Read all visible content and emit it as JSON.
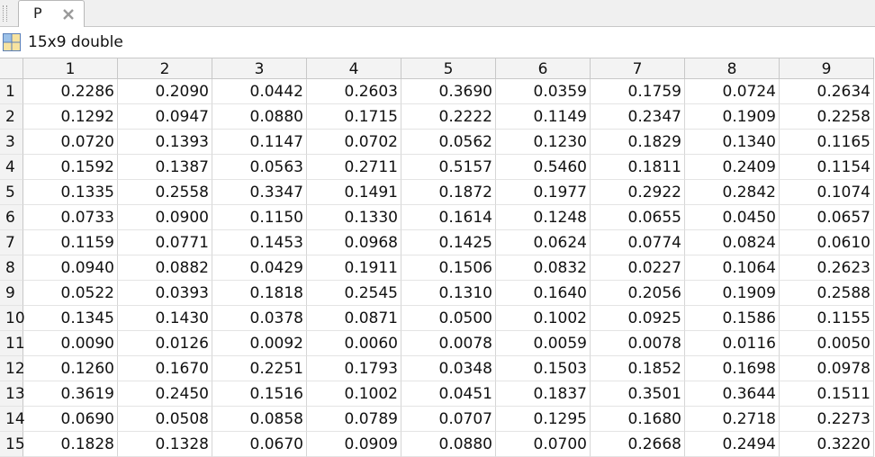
{
  "tab": {
    "label": "P"
  },
  "info": {
    "label": "15x9 double"
  },
  "table": {
    "column_headers": [
      "1",
      "2",
      "3",
      "4",
      "5",
      "6",
      "7",
      "8",
      "9"
    ],
    "row_headers": [
      "1",
      "2",
      "3",
      "4",
      "5",
      "6",
      "7",
      "8",
      "9",
      "10",
      "11",
      "12",
      "13",
      "14",
      "15"
    ],
    "rows": [
      [
        "0.2286",
        "0.2090",
        "0.0442",
        "0.2603",
        "0.3690",
        "0.0359",
        "0.1759",
        "0.0724",
        "0.2634"
      ],
      [
        "0.1292",
        "0.0947",
        "0.0880",
        "0.1715",
        "0.2222",
        "0.1149",
        "0.2347",
        "0.1909",
        "0.2258"
      ],
      [
        "0.0720",
        "0.1393",
        "0.1147",
        "0.0702",
        "0.0562",
        "0.1230",
        "0.1829",
        "0.1340",
        "0.1165"
      ],
      [
        "0.1592",
        "0.1387",
        "0.0563",
        "0.2711",
        "0.5157",
        "0.5460",
        "0.1811",
        "0.2409",
        "0.1154"
      ],
      [
        "0.1335",
        "0.2558",
        "0.3347",
        "0.1491",
        "0.1872",
        "0.1977",
        "0.2922",
        "0.2842",
        "0.1074"
      ],
      [
        "0.0733",
        "0.0900",
        "0.1150",
        "0.1330",
        "0.1614",
        "0.1248",
        "0.0655",
        "0.0450",
        "0.0657"
      ],
      [
        "0.1159",
        "0.0771",
        "0.1453",
        "0.0968",
        "0.1425",
        "0.0624",
        "0.0774",
        "0.0824",
        "0.0610"
      ],
      [
        "0.0940",
        "0.0882",
        "0.0429",
        "0.1911",
        "0.1506",
        "0.0832",
        "0.0227",
        "0.1064",
        "0.2623"
      ],
      [
        "0.0522",
        "0.0393",
        "0.1818",
        "0.2545",
        "0.1310",
        "0.1640",
        "0.2056",
        "0.1909",
        "0.2588"
      ],
      [
        "0.1345",
        "0.1430",
        "0.0378",
        "0.0871",
        "0.0500",
        "0.1002",
        "0.0925",
        "0.1586",
        "0.1155"
      ],
      [
        "0.0090",
        "0.0126",
        "0.0092",
        "0.0060",
        "0.0078",
        "0.0059",
        "0.0078",
        "0.0116",
        "0.0050"
      ],
      [
        "0.1260",
        "0.1670",
        "0.2251",
        "0.1793",
        "0.0348",
        "0.1503",
        "0.1852",
        "0.1698",
        "0.0978"
      ],
      [
        "0.3619",
        "0.2450",
        "0.1516",
        "0.1002",
        "0.0451",
        "0.1837",
        "0.3501",
        "0.3644",
        "0.1511"
      ],
      [
        "0.0690",
        "0.0508",
        "0.0858",
        "0.0789",
        "0.0707",
        "0.1295",
        "0.1680",
        "0.2718",
        "0.2273"
      ],
      [
        "0.1828",
        "0.1328",
        "0.0670",
        "0.0909",
        "0.0880",
        "0.0700",
        "0.2668",
        "0.2494",
        "0.3220"
      ]
    ]
  }
}
